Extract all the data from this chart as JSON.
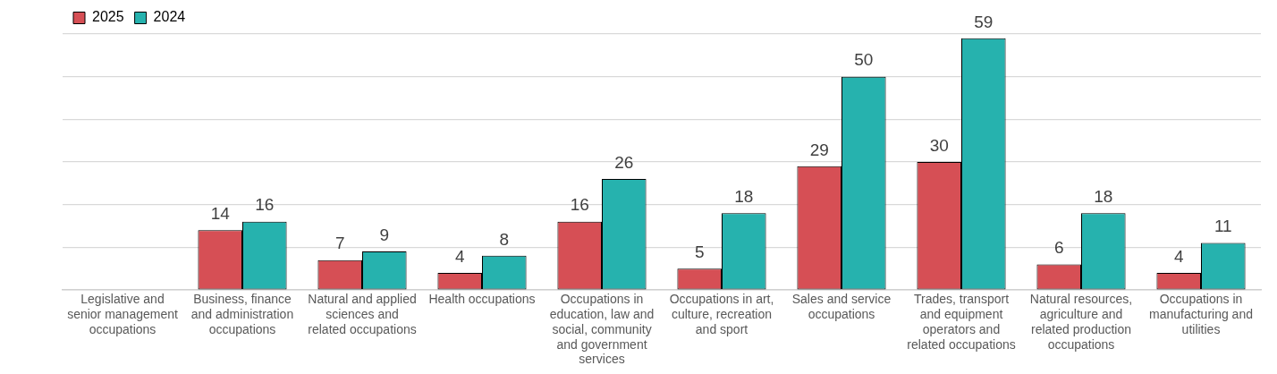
{
  "chart_data": {
    "type": "bar",
    "categories": [
      "Legislative and senior management occupations",
      "Business, finance and administration occupations",
      "Natural and applied sciences and related occupations",
      "Health occupations",
      "Occupations in education, law and social, community and government services",
      "Occupations in art, culture, recreation and sport",
      "Sales and service occupations",
      "Trades, transport and equipment operators and related occupations",
      "Natural resources, agriculture and related production occupations",
      "Occupations in manufacturing and utilities"
    ],
    "series": [
      {
        "name": "2025",
        "color": "#d64f55",
        "values": [
          null,
          14,
          7,
          4,
          16,
          5,
          29,
          30,
          6,
          4
        ]
      },
      {
        "name": "2024",
        "color": "#26b2ae",
        "values": [
          null,
          16,
          9,
          8,
          26,
          18,
          50,
          59,
          18,
          11
        ]
      }
    ],
    "tick_labels": "x",
    "grid": "y",
    "legend": "top left",
    "data_labels": true
  }
}
